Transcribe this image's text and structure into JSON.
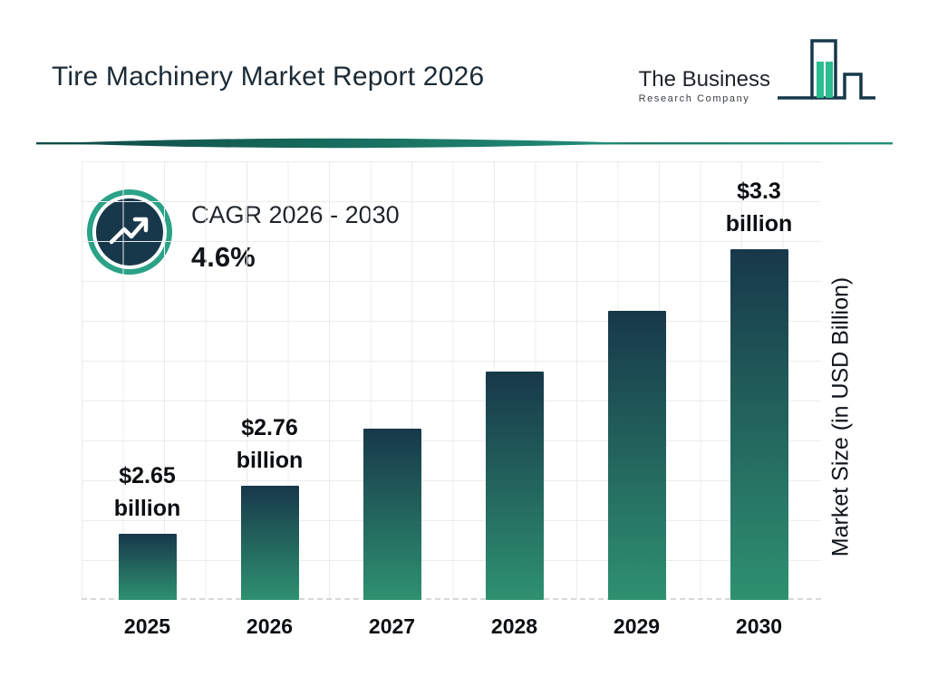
{
  "page": {
    "title": "Tire Machinery Market Report 2026"
  },
  "logo": {
    "line1": "The Business",
    "line2": "Research Company"
  },
  "cagr": {
    "label": "CAGR 2026 - 2030",
    "value": "4.6%"
  },
  "chart_data": {
    "type": "bar",
    "title": "Tire Machinery Market Report 2026",
    "categories": [
      "2025",
      "2026",
      "2027",
      "2028",
      "2029",
      "2030"
    ],
    "values": [
      2.65,
      2.76,
      2.89,
      3.02,
      3.16,
      3.3
    ],
    "unit": "USD Billion",
    "value_labels": [
      [
        "$2.65",
        "billion"
      ],
      [
        "$2.76",
        "billion"
      ],
      null,
      null,
      null,
      [
        "$3.3",
        "billion"
      ]
    ],
    "xlabel": "",
    "ylabel": "Market Size (in USD Billion)",
    "ylim": [
      2.5,
      3.5
    ],
    "grid": true,
    "legend": "none",
    "bar_color_top": "#17384a",
    "bar_color_bottom": "#2e9170"
  },
  "colors": {
    "navy": "#17384a",
    "teal_green": "#2e9170",
    "ring_teal": "#2ba287",
    "divider_dark": "#0e4a45",
    "divider_light": "#23907a",
    "logo_green": "#2dbd8f",
    "grid_line": "#ececec"
  }
}
